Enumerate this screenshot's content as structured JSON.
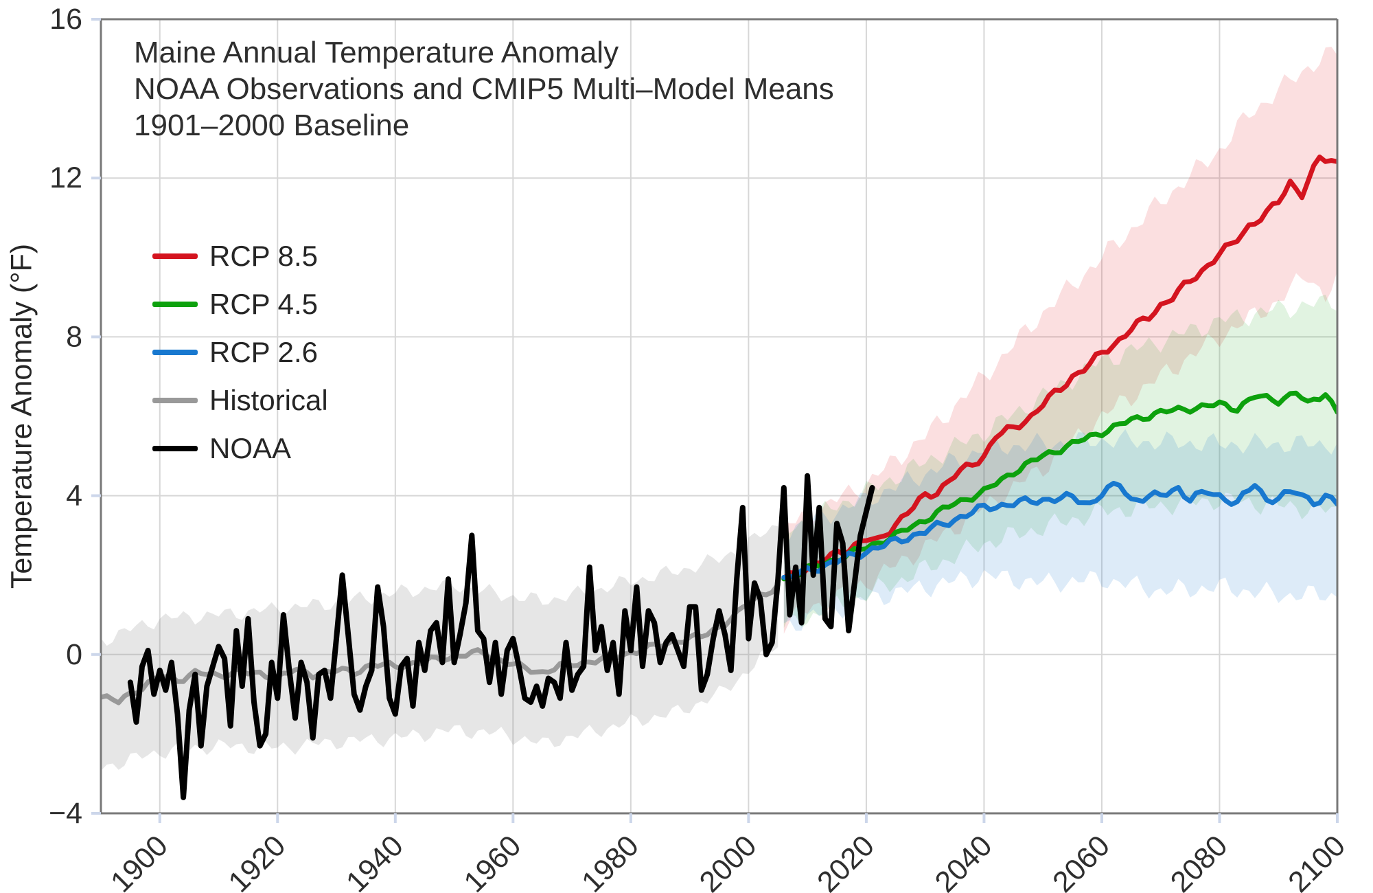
{
  "chart_data": {
    "type": "line",
    "title_lines": [
      "Maine Annual Temperature Anomaly",
      "NOAA Observations and CMIP5 Multi–Model Means",
      "1901–2000 Baseline"
    ],
    "xlabel": "",
    "ylabel": "Temperature Anomaly (°F)",
    "xlim": [
      1890,
      2100
    ],
    "ylim": [
      -4,
      16
    ],
    "xticks": [
      {
        "v": 1900,
        "label": "1900"
      },
      {
        "v": 1920,
        "label": "1920"
      },
      {
        "v": 1940,
        "label": "1940"
      },
      {
        "v": 1960,
        "label": "1960"
      },
      {
        "v": 1980,
        "label": "1980"
      },
      {
        "v": 2000,
        "label": "2000"
      },
      {
        "v": 2020,
        "label": "2020"
      },
      {
        "v": 2040,
        "label": "2040"
      },
      {
        "v": 2060,
        "label": "2060"
      },
      {
        "v": 2080,
        "label": "2080"
      },
      {
        "v": 2100,
        "label": "2100"
      }
    ],
    "yticks": [
      {
        "v": -4,
        "label": "−4"
      },
      {
        "v": 0,
        "label": "0"
      },
      {
        "v": 4,
        "label": "4"
      },
      {
        "v": 8,
        "label": "8"
      },
      {
        "v": 12,
        "label": "12"
      },
      {
        "v": 16,
        "label": "16"
      }
    ],
    "grid": true,
    "legend_position": "upper left",
    "background": "#ffffff",
    "grid_color": "#d7d7d7",
    "spine_color": "#787878",
    "tick_color": "#ccd6ea",
    "series": [
      {
        "name": "Historical",
        "kind": "model-mean",
        "color": "#999999",
        "band_color": "rgba(128,128,128,0.20)",
        "jitter": 0.1,
        "band_jitter": 0.22,
        "seed": 4,
        "mean_keyframes": [
          [
            1890,
            -1.05
          ],
          [
            1893,
            -1.2
          ],
          [
            1896,
            -0.9
          ],
          [
            1900,
            -0.55
          ],
          [
            1903,
            -0.65
          ],
          [
            1906,
            -0.45
          ],
          [
            1910,
            -0.55
          ],
          [
            1913,
            -0.4
          ],
          [
            1916,
            -0.5
          ],
          [
            1920,
            -0.55
          ],
          [
            1923,
            -0.4
          ],
          [
            1926,
            -0.5
          ],
          [
            1930,
            -0.4
          ],
          [
            1933,
            -0.45
          ],
          [
            1936,
            -0.25
          ],
          [
            1940,
            -0.3
          ],
          [
            1944,
            -0.2
          ],
          [
            1948,
            -0.1
          ],
          [
            1952,
            0.0
          ],
          [
            1955,
            0.05
          ],
          [
            1958,
            -0.15
          ],
          [
            1962,
            -0.35
          ],
          [
            1965,
            -0.45
          ],
          [
            1968,
            -0.3
          ],
          [
            1972,
            -0.2
          ],
          [
            1976,
            -0.1
          ],
          [
            1980,
            0.05
          ],
          [
            1984,
            0.2
          ],
          [
            1988,
            0.35
          ],
          [
            1992,
            0.45
          ],
          [
            1995,
            0.7
          ],
          [
            1998,
            1.0
          ],
          [
            2000,
            1.3
          ],
          [
            2002,
            1.5
          ],
          [
            2005,
            1.7
          ]
        ],
        "band_lower_keyframes": [
          [
            1890,
            -2.85
          ],
          [
            1900,
            -2.45
          ],
          [
            1910,
            -2.3
          ],
          [
            1920,
            -2.35
          ],
          [
            1930,
            -2.2
          ],
          [
            1940,
            -2.1
          ],
          [
            1950,
            -1.9
          ],
          [
            1958,
            -2.0
          ],
          [
            1965,
            -2.25
          ],
          [
            1972,
            -2.0
          ],
          [
            1980,
            -1.7
          ],
          [
            1988,
            -1.45
          ],
          [
            1995,
            -1.0
          ],
          [
            2000,
            -0.4
          ],
          [
            2005,
            0.3
          ]
        ],
        "band_upper_keyframes": [
          [
            1890,
            0.35
          ],
          [
            1900,
            0.9
          ],
          [
            1910,
            1.0
          ],
          [
            1920,
            1.15
          ],
          [
            1930,
            1.3
          ],
          [
            1940,
            1.55
          ],
          [
            1950,
            1.75
          ],
          [
            1958,
            1.5
          ],
          [
            1965,
            1.35
          ],
          [
            1972,
            1.55
          ],
          [
            1980,
            1.85
          ],
          [
            1988,
            2.1
          ],
          [
            1995,
            2.4
          ],
          [
            2000,
            2.8
          ],
          [
            2005,
            3.3
          ]
        ]
      },
      {
        "name": "RCP 8.5",
        "kind": "projection",
        "color": "#d4141f",
        "band_color": "rgba(230,25,35,0.14)",
        "jitter": 0.12,
        "band_jitter": 0.3,
        "seed": 1,
        "mean_keyframes": [
          [
            2006,
            1.9
          ],
          [
            2008,
            2.05
          ],
          [
            2010,
            2.2
          ],
          [
            2012,
            2.3
          ],
          [
            2015,
            2.55
          ],
          [
            2018,
            2.75
          ],
          [
            2020,
            2.9
          ],
          [
            2022,
            2.85
          ],
          [
            2025,
            3.3
          ],
          [
            2028,
            3.7
          ],
          [
            2030,
            4.0
          ],
          [
            2032,
            4.1
          ],
          [
            2035,
            4.5
          ],
          [
            2038,
            4.8
          ],
          [
            2040,
            5.0
          ],
          [
            2042,
            5.5
          ],
          [
            2045,
            5.7
          ],
          [
            2048,
            6.0
          ],
          [
            2050,
            6.3
          ],
          [
            2053,
            6.7
          ],
          [
            2055,
            7.0
          ],
          [
            2058,
            7.3
          ],
          [
            2060,
            7.6
          ],
          [
            2062,
            7.8
          ],
          [
            2065,
            8.2
          ],
          [
            2068,
            8.5
          ],
          [
            2070,
            8.8
          ],
          [
            2072,
            9.0
          ],
          [
            2075,
            9.4
          ],
          [
            2078,
            9.8
          ],
          [
            2080,
            10.1
          ],
          [
            2082,
            10.3
          ],
          [
            2085,
            10.8
          ],
          [
            2088,
            11.1
          ],
          [
            2090,
            11.4
          ],
          [
            2092,
            11.9
          ],
          [
            2094,
            11.6
          ],
          [
            2097,
            12.5
          ],
          [
            2100,
            12.4
          ]
        ],
        "band_lower_keyframes": [
          [
            2006,
            0.8
          ],
          [
            2010,
            1.1
          ],
          [
            2020,
            1.8
          ],
          [
            2030,
            2.7
          ],
          [
            2040,
            3.7
          ],
          [
            2050,
            4.7
          ],
          [
            2060,
            6.0
          ],
          [
            2070,
            7.0
          ],
          [
            2080,
            8.0
          ],
          [
            2090,
            8.9
          ],
          [
            2095,
            9.6
          ],
          [
            2098,
            9.0
          ],
          [
            2100,
            9.4
          ]
        ],
        "band_upper_keyframes": [
          [
            2006,
            3.2
          ],
          [
            2010,
            3.5
          ],
          [
            2020,
            4.3
          ],
          [
            2030,
            5.5
          ],
          [
            2040,
            7.0
          ],
          [
            2050,
            8.6
          ],
          [
            2060,
            10.0
          ],
          [
            2070,
            11.4
          ],
          [
            2080,
            12.7
          ],
          [
            2085,
            13.6
          ],
          [
            2090,
            14.2
          ],
          [
            2095,
            14.8
          ],
          [
            2100,
            15.2
          ]
        ]
      },
      {
        "name": "RCP 4.5",
        "kind": "projection",
        "color": "#0da10d",
        "band_color": "rgba(20,160,20,0.13)",
        "jitter": 0.1,
        "band_jitter": 0.3,
        "seed": 2,
        "mean_keyframes": [
          [
            2006,
            1.9
          ],
          [
            2010,
            2.15
          ],
          [
            2015,
            2.4
          ],
          [
            2020,
            2.7
          ],
          [
            2025,
            3.0
          ],
          [
            2030,
            3.4
          ],
          [
            2035,
            3.8
          ],
          [
            2040,
            4.1
          ],
          [
            2045,
            4.6
          ],
          [
            2050,
            5.0
          ],
          [
            2055,
            5.3
          ],
          [
            2060,
            5.6
          ],
          [
            2065,
            5.9
          ],
          [
            2070,
            6.1
          ],
          [
            2075,
            6.2
          ],
          [
            2080,
            6.3
          ],
          [
            2083,
            6.2
          ],
          [
            2086,
            6.5
          ],
          [
            2090,
            6.4
          ],
          [
            2093,
            6.6
          ],
          [
            2095,
            6.3
          ],
          [
            2098,
            6.6
          ],
          [
            2100,
            6.1
          ]
        ],
        "band_lower_keyframes": [
          [
            2006,
            0.7
          ],
          [
            2020,
            1.5
          ],
          [
            2040,
            2.8
          ],
          [
            2060,
            3.6
          ],
          [
            2080,
            3.9
          ],
          [
            2100,
            3.6
          ]
        ],
        "band_upper_keyframes": [
          [
            2006,
            3.1
          ],
          [
            2020,
            4.1
          ],
          [
            2040,
            5.6
          ],
          [
            2060,
            7.4
          ],
          [
            2080,
            8.4
          ],
          [
            2090,
            8.7
          ],
          [
            2100,
            8.9
          ]
        ]
      },
      {
        "name": "RCP 2.6",
        "kind": "projection",
        "color": "#1878cf",
        "band_color": "rgba(30,120,210,0.15)",
        "jitter": 0.12,
        "band_jitter": 0.3,
        "seed": 3,
        "mean_keyframes": [
          [
            2006,
            1.9
          ],
          [
            2010,
            2.1
          ],
          [
            2015,
            2.35
          ],
          [
            2020,
            2.6
          ],
          [
            2025,
            2.85
          ],
          [
            2030,
            3.1
          ],
          [
            2035,
            3.4
          ],
          [
            2040,
            3.7
          ],
          [
            2045,
            3.8
          ],
          [
            2050,
            3.9
          ],
          [
            2055,
            3.95
          ],
          [
            2058,
            3.8
          ],
          [
            2060,
            4.05
          ],
          [
            2063,
            4.3
          ],
          [
            2065,
            3.9
          ],
          [
            2070,
            4.0
          ],
          [
            2073,
            4.2
          ],
          [
            2075,
            3.9
          ],
          [
            2078,
            4.1
          ],
          [
            2080,
            4.0
          ],
          [
            2083,
            3.8
          ],
          [
            2086,
            4.3
          ],
          [
            2088,
            3.9
          ],
          [
            2090,
            3.95
          ],
          [
            2093,
            4.1
          ],
          [
            2096,
            3.85
          ],
          [
            2098,
            3.95
          ],
          [
            2100,
            3.8
          ]
        ],
        "band_lower_keyframes": [
          [
            2006,
            0.7
          ],
          [
            2020,
            1.4
          ],
          [
            2040,
            2.0
          ],
          [
            2050,
            1.8
          ],
          [
            2060,
            1.9
          ],
          [
            2070,
            1.6
          ],
          [
            2080,
            1.7
          ],
          [
            2090,
            1.5
          ],
          [
            2100,
            1.5
          ]
        ],
        "band_upper_keyframes": [
          [
            2006,
            3.1
          ],
          [
            2020,
            3.9
          ],
          [
            2040,
            5.2
          ],
          [
            2060,
            5.4
          ],
          [
            2080,
            5.3
          ],
          [
            2100,
            5.3
          ]
        ]
      },
      {
        "name": "NOAA",
        "kind": "observations",
        "color": "#000000",
        "start_year": 1895,
        "values": [
          -0.7,
          -1.7,
          -0.3,
          0.1,
          -1.0,
          -0.4,
          -0.9,
          -0.2,
          -1.5,
          -3.6,
          -1.4,
          -0.5,
          -2.3,
          -0.8,
          -0.3,
          0.2,
          -0.1,
          -1.8,
          0.6,
          -0.8,
          0.9,
          -1.2,
          -2.3,
          -2.0,
          -0.2,
          -1.1,
          1.0,
          -0.4,
          -1.6,
          -0.2,
          -0.7,
          -2.1,
          -0.5,
          -0.4,
          -1.1,
          0.4,
          2.0,
          0.5,
          -1.0,
          -1.4,
          -0.8,
          -0.4,
          1.7,
          0.7,
          -1.1,
          -1.5,
          -0.3,
          -0.1,
          -1.3,
          0.3,
          -0.4,
          0.6,
          0.8,
          -0.2,
          1.9,
          -0.2,
          0.5,
          1.3,
          3.0,
          0.6,
          0.4,
          -0.7,
          0.3,
          -1.0,
          0.1,
          0.4,
          -0.3,
          -1.1,
          -1.2,
          -0.8,
          -1.3,
          -0.6,
          -0.7,
          -1.1,
          0.3,
          -0.9,
          -0.5,
          -0.3,
          2.2,
          0.1,
          0.7,
          -0.4,
          0.3,
          -1.0,
          1.1,
          0.1,
          1.7,
          -0.3,
          1.1,
          0.8,
          -0.2,
          0.3,
          0.5,
          0.1,
          -0.3,
          1.2,
          1.2,
          -0.9,
          -0.5,
          0.4,
          1.1,
          0.5,
          -0.4,
          1.9,
          3.7,
          0.4,
          1.8,
          1.4,
          0.0,
          0.3,
          1.9,
          4.2,
          1.0,
          2.2,
          0.8,
          4.5,
          2.0,
          3.7,
          0.9,
          0.7,
          3.3,
          2.8,
          0.6,
          1.8,
          3.0,
          3.6,
          4.2
        ]
      }
    ]
  },
  "legend": {
    "items": [
      {
        "label": "RCP 8.5",
        "color": "#d4141f"
      },
      {
        "label": "RCP 4.5",
        "color": "#0da10d"
      },
      {
        "label": "RCP 2.6",
        "color": "#1878cf"
      },
      {
        "label": "Historical",
        "color": "#999999"
      },
      {
        "label": "NOAA",
        "color": "#000000"
      }
    ]
  }
}
